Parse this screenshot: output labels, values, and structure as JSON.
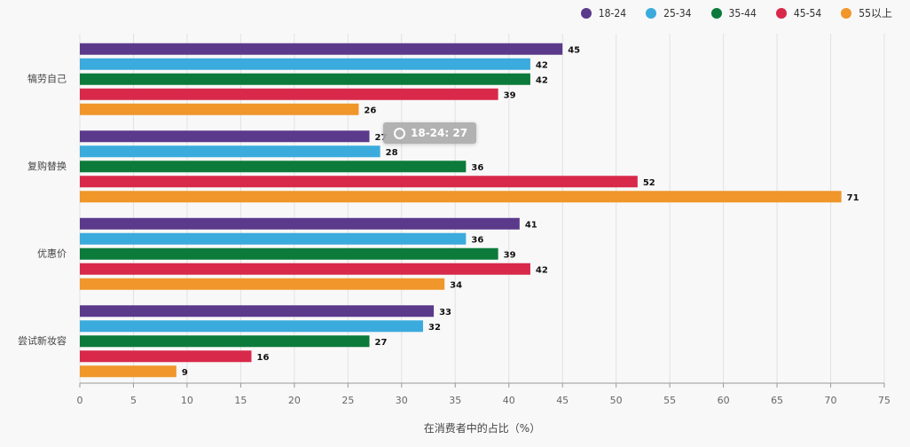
{
  "legend": [
    {
      "label": "18-24",
      "color": "#5b3a8c"
    },
    {
      "label": "25-34",
      "color": "#3aabdc"
    },
    {
      "label": "35-44",
      "color": "#0b7a3b"
    },
    {
      "label": "45-54",
      "color": "#d8294a"
    },
    {
      "label": "55以上",
      "color": "#f0962a"
    }
  ],
  "tooltip": {
    "text": "18-24: 27"
  },
  "chart_data": {
    "type": "bar",
    "orientation": "horizontal",
    "categories": [
      "犒劳自己",
      "复购替换",
      "优惠价",
      "尝试新妆容"
    ],
    "series": [
      {
        "name": "18-24",
        "color": "#5b3a8c",
        "values": [
          45,
          27,
          41,
          33
        ]
      },
      {
        "name": "25-34",
        "color": "#3aabdc",
        "values": [
          42,
          28,
          36,
          32
        ]
      },
      {
        "name": "35-44",
        "color": "#0b7a3b",
        "values": [
          42,
          36,
          39,
          27
        ]
      },
      {
        "name": "45-54",
        "color": "#d8294a",
        "values": [
          39,
          52,
          42,
          16
        ]
      },
      {
        "name": "55以上",
        "color": "#f0962a",
        "values": [
          26,
          71,
          34,
          9
        ]
      }
    ],
    "xlabel": "在消费者中的占比（%）",
    "ylabel": "",
    "xlim": [
      0,
      75
    ],
    "xticks": [
      0,
      5,
      10,
      15,
      20,
      25,
      30,
      35,
      40,
      45,
      50,
      55,
      60,
      65,
      70,
      75
    ],
    "grid": true,
    "legend_position": "top-right"
  }
}
